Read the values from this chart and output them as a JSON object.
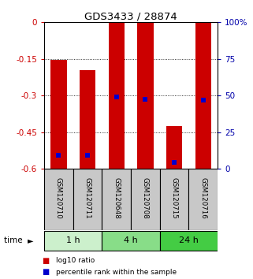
{
  "title": "GDS3433 / 28874",
  "categories": [
    "GSM120710",
    "GSM120711",
    "GSM120648",
    "GSM120708",
    "GSM120715",
    "GSM120716"
  ],
  "bar_heights_top": [
    -0.155,
    -0.195,
    0.0,
    0.0,
    -0.425,
    0.0
  ],
  "bar_bottom": -0.6,
  "bar_color": "#cc0000",
  "blue_marker_positions": [
    -0.545,
    -0.545,
    -0.305,
    -0.315,
    -0.575,
    -0.32
  ],
  "blue_color": "#0000cc",
  "ylim": [
    -0.6,
    0.0
  ],
  "yticks_left": [
    0,
    -0.15,
    -0.3,
    -0.45,
    -0.6
  ],
  "ytick_labels_left": [
    "0",
    "-0.15",
    "-0.3",
    "-0.45",
    "-0.6"
  ],
  "yticks_right_vals": [
    0,
    -0.15,
    -0.3,
    -0.45,
    -0.6
  ],
  "ytick_labels_right": [
    "100%",
    "75",
    "50",
    "25",
    "0"
  ],
  "grid_lines": [
    -0.15,
    -0.3,
    -0.45
  ],
  "groups": [
    {
      "label": "1 h",
      "start": 0,
      "end": 2,
      "color": "#ccf0cc"
    },
    {
      "label": "4 h",
      "start": 2,
      "end": 4,
      "color": "#88dd88"
    },
    {
      "label": "24 h",
      "start": 4,
      "end": 6,
      "color": "#44cc44"
    }
  ],
  "sample_box_color": "#c8c8c8",
  "time_label": "time",
  "legend_items": [
    {
      "label": "log10 ratio",
      "color": "#cc0000"
    },
    {
      "label": "percentile rank within the sample",
      "color": "#0000cc"
    }
  ],
  "left_axis_color": "#cc0000",
  "right_axis_color": "#0000aa",
  "bar_width": 0.55,
  "blue_marker_size": 5
}
